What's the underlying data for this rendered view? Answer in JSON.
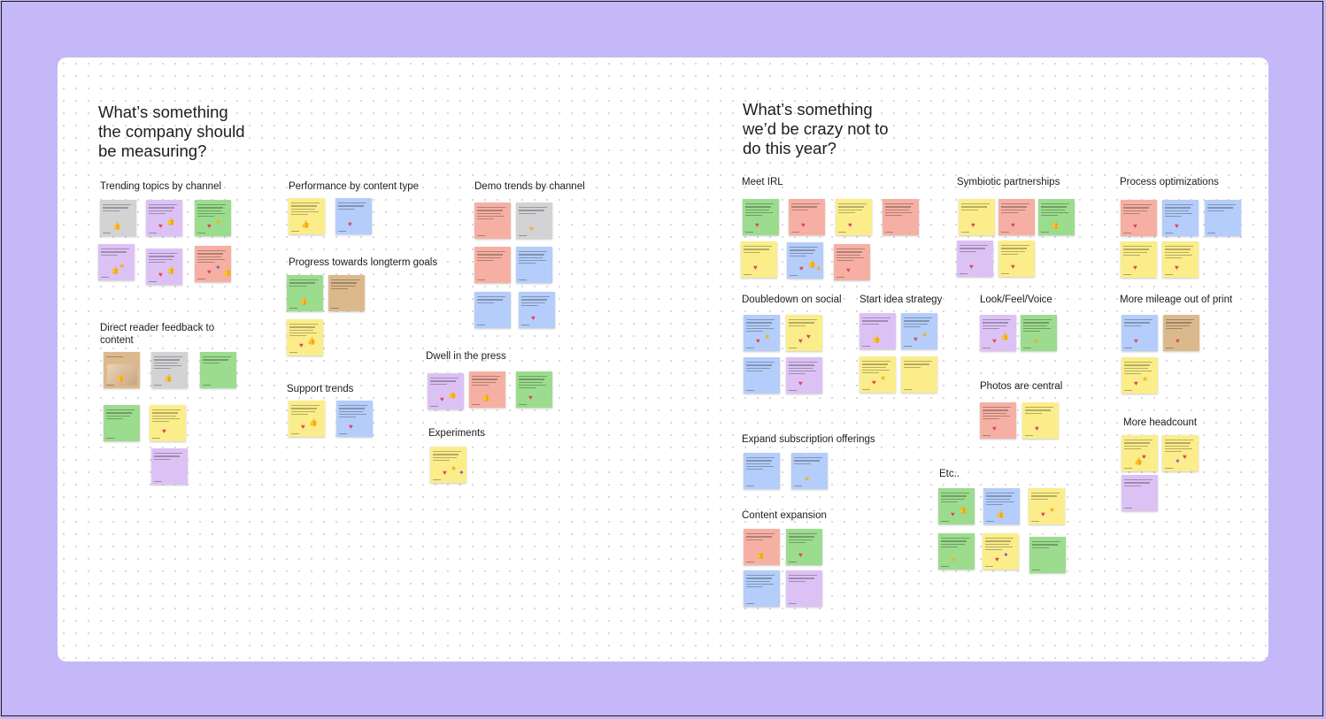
{
  "board": {
    "colors": {
      "canvas": "#c4b8f8",
      "board": "#ffffff",
      "yellow": "#fbed8a",
      "blue": "#b4cdfa",
      "green": "#9cdc8e",
      "pink": "#f6b0a3",
      "purple": "#dcc2f4",
      "gray": "#d3d3d6",
      "tan": "#dcb98c"
    },
    "questions": [
      {
        "title": "What’s something\nthe company should\nbe measuring?"
      },
      {
        "title": "What’s something\nwe’d be crazy not to\ndo this year?"
      }
    ],
    "sections": [
      {
        "label": "Trending topics by channel",
        "stickies": [
          {
            "color": "gray",
            "text": "Trending Topics by Platform",
            "reactions": [
              "thumb"
            ]
          },
          {
            "color": "purple",
            "text": "Of the young age following on our Instagram, what are they most interested in?",
            "reactions": [
              "heart",
              "thumb"
            ]
          },
          {
            "color": "green",
            "text": "Trends in generalized interests on IG / Web",
            "reactions": [
              "heart",
              "star"
            ]
          },
          {
            "color": "purple",
            "text": "What do people search for on Google",
            "reactions": [
              "thumb",
              "star"
            ]
          },
          {
            "color": "purple",
            "text": "What people click on via social channels",
            "reactions": [
              "heart",
              "thumb"
            ]
          },
          {
            "color": "pink",
            "text": "Most trending organic search keywords",
            "reactions": [
              "heart",
              "party",
              "thumb"
            ]
          }
        ]
      },
      {
        "label": "Direct reader feedback to content",
        "stickies": [
          {
            "color": "tan",
            "text": "Audience feedback",
            "reactions": [
              "thumb"
            ],
            "photo": true
          },
          {
            "color": "gray",
            "text": "Reader comments by content",
            "reactions": [
              "thumb"
            ]
          },
          {
            "color": "green",
            "text": "Audience feedback on content",
            "reactions": []
          },
          {
            "color": "green",
            "text": "Social media engagement",
            "reactions": []
          },
          {
            "color": "yellow",
            "text": "Key reader responses",
            "reactions": [
              "heart"
            ]
          },
          {
            "color": "purple",
            "text": "Feedback from readers on topics",
            "reactions": []
          }
        ]
      },
      {
        "label": "Performance by content type",
        "stickies": [
          {
            "color": "yellow",
            "text": "Engagement by content type",
            "reactions": [
              "thumb"
            ]
          },
          {
            "color": "blue",
            "text": "Performance of each content format",
            "reactions": [
              "heart"
            ]
          }
        ]
      },
      {
        "label": "Progress towards longterm goals",
        "stickies": [
          {
            "color": "green",
            "text": "Tracking revenue goals",
            "reactions": [
              "thumb"
            ]
          },
          {
            "color": "tan",
            "text": "Benchmark metrics",
            "reactions": []
          },
          {
            "color": "yellow",
            "text": "Progress on annual company milestones",
            "reactions": [
              "heart",
              "thumb"
            ]
          }
        ]
      },
      {
        "label": "Support trends",
        "stickies": [
          {
            "color": "yellow",
            "text": "Customer service trends",
            "reactions": [
              "heart",
              "thumb"
            ]
          },
          {
            "color": "blue",
            "text": "Customer support ticket topics",
            "reactions": [
              "heart"
            ]
          }
        ]
      },
      {
        "label": "Demo trends by channel",
        "stickies": [
          {
            "color": "pink",
            "text": "Which demo profile drives content",
            "reactions": []
          },
          {
            "color": "gray",
            "text": "Trend by platform",
            "reactions": [
              "star"
            ]
          },
          {
            "color": "pink",
            "text": "Age groups and gender",
            "reactions": []
          },
          {
            "color": "blue",
            "text": "Growth of our audience by channel",
            "reactions": []
          },
          {
            "color": "blue",
            "text": "Audience growth by channel",
            "reactions": []
          },
          {
            "color": "blue",
            "text": "Gen audience trends",
            "reactions": [
              "heart"
            ]
          }
        ]
      },
      {
        "label": "Dwell in the press",
        "stickies": [
          {
            "color": "purple",
            "text": "Are readers staying longer",
            "reactions": [
              "heart",
              "thumb"
            ]
          },
          {
            "color": "pink",
            "text": "Sections of time in article",
            "reactions": [
              "thumb"
            ]
          },
          {
            "color": "green",
            "text": "Reference to dwell time",
            "reactions": [
              "heart"
            ]
          }
        ]
      },
      {
        "label": "Experiments",
        "stickies": [
          {
            "color": "yellow",
            "text": "Experiment ideas",
            "reactions": [
              "heart",
              "star",
              "party"
            ]
          }
        ]
      },
      {
        "label": "Meet IRL",
        "stickies": [
          {
            "color": "green",
            "text": "Get together IRL",
            "reactions": [
              "heart"
            ]
          },
          {
            "color": "pink",
            "text": "Team retreats",
            "reactions": [
              "heart"
            ]
          },
          {
            "color": "yellow",
            "text": "Meet-ups",
            "reactions": [
              "heart"
            ]
          },
          {
            "color": "pink",
            "text": "In-person company retreat",
            "reactions": []
          },
          {
            "color": "yellow",
            "text": "Company-wide offsite",
            "reactions": [
              "heart"
            ]
          },
          {
            "color": "blue",
            "text": "Team building",
            "reactions": [
              "heart",
              "thumb",
              "star"
            ]
          },
          {
            "color": "pink",
            "text": "Quarterly in-person planning",
            "reactions": [
              "heart"
            ]
          }
        ]
      },
      {
        "label": "Symbiotic partnerships",
        "stickies": [
          {
            "color": "yellow",
            "text": "Explore partnerships",
            "reactions": [
              "heart"
            ]
          },
          {
            "color": "pink",
            "text": "Syndication partners",
            "reactions": [
              "heart"
            ]
          },
          {
            "color": "green",
            "text": "Joint programs",
            "reactions": [
              "thumb"
            ]
          },
          {
            "color": "purple",
            "text": "Partner events",
            "reactions": [
              "heart"
            ]
          },
          {
            "color": "yellow",
            "text": "Find new partners",
            "reactions": [
              "heart"
            ]
          }
        ]
      },
      {
        "label": "Process optimizations",
        "stickies": [
          {
            "color": "pink",
            "text": "Bring workflows up to date",
            "reactions": [
              "heart"
            ]
          },
          {
            "color": "blue",
            "text": "Make processes faster",
            "reactions": [
              "heart"
            ]
          },
          {
            "color": "blue",
            "text": "Streamline tools",
            "reactions": []
          },
          {
            "color": "yellow",
            "text": "Invest in a planning platform",
            "reactions": [
              "heart"
            ]
          },
          {
            "color": "yellow",
            "text": "Automate where possible",
            "reactions": [
              "heart"
            ]
          }
        ]
      },
      {
        "label": "Doubledown on social",
        "stickies": [
          {
            "color": "blue",
            "text": "Go hard on social",
            "reactions": [
              "heart",
              "star"
            ]
          },
          {
            "color": "yellow",
            "text": "Get TikTok famous",
            "reactions": [
              "heart",
              "heart"
            ]
          },
          {
            "color": "blue",
            "text": "Double down on Instagram",
            "reactions": []
          },
          {
            "color": "purple",
            "text": "Try video platforms",
            "reactions": [
              "heart"
            ]
          }
        ]
      },
      {
        "label": "Start idea strategy",
        "stickies": [
          {
            "color": "purple",
            "text": "Where it could go",
            "reactions": [
              "thumb"
            ]
          },
          {
            "color": "blue",
            "text": "Short form video content",
            "reactions": [
              "heart",
              "star"
            ]
          },
          {
            "color": "yellow",
            "text": "Share ideas that work",
            "reactions": [
              "heart",
              "star"
            ]
          },
          {
            "color": "yellow",
            "text": "Amplification strategy",
            "reactions": []
          }
        ]
      },
      {
        "label": "Look/Feel/Voice",
        "stickies": [
          {
            "color": "purple",
            "text": "Refresh the overall look",
            "reactions": [
              "heart",
              "thumb"
            ]
          },
          {
            "color": "green",
            "text": "Update brand colors",
            "reactions": [
              "star"
            ]
          }
        ]
      },
      {
        "label": "Photos are central",
        "stickies": [
          {
            "color": "pink",
            "text": "Make photos central",
            "reactions": [
              "heart"
            ]
          },
          {
            "color": "yellow",
            "text": "Plan for a fresh image style",
            "reactions": [
              "heart"
            ]
          }
        ]
      },
      {
        "label": "More mileage out of print",
        "stickies": [
          {
            "color": "blue",
            "text": "Strategize print",
            "reactions": [
              "heart"
            ]
          },
          {
            "color": "tan",
            "text": "Print digest",
            "reactions": [
              "heart"
            ]
          },
          {
            "color": "yellow",
            "text": "Reuse print content",
            "reactions": [
              "heart",
              "star"
            ]
          }
        ]
      },
      {
        "label": "More headcount",
        "stickies": [
          {
            "color": "yellow",
            "text": "Hire more people",
            "reactions": [
              "thumb",
              "heart"
            ]
          },
          {
            "color": "yellow",
            "text": "Grow the team",
            "reactions": [
              "party",
              "heart"
            ]
          },
          {
            "color": "purple",
            "text": "More new roles",
            "reactions": []
          }
        ]
      },
      {
        "label": "Expand subscription offerings",
        "stickies": [
          {
            "color": "blue",
            "text": "Add new subscription tiers",
            "reactions": []
          },
          {
            "color": "blue",
            "text": "Gift subscriptions",
            "reactions": [
              "star"
            ]
          }
        ]
      },
      {
        "label": "Content expansion",
        "stickies": [
          {
            "color": "pink",
            "text": "Increase volume of guides",
            "reactions": [
              "thumb"
            ]
          },
          {
            "color": "green",
            "text": "Create new interactive content",
            "reactions": [
              "heart"
            ]
          },
          {
            "color": "blue",
            "text": "More in-depth stories",
            "reactions": []
          },
          {
            "color": "purple",
            "text": "Newsletter",
            "reactions": []
          }
        ]
      },
      {
        "label": "Etc..",
        "stickies": [
          {
            "color": "green",
            "text": "Go global",
            "reactions": [
              "heart",
              "thumb"
            ]
          },
          {
            "color": "blue",
            "text": "Expand our reach",
            "reactions": [
              "thumb"
            ]
          },
          {
            "color": "yellow",
            "text": "Grow our visibility",
            "reactions": [
              "heart",
              "star"
            ]
          },
          {
            "color": "green",
            "text": "Rethink events",
            "reactions": [
              "star"
            ]
          },
          {
            "color": "yellow",
            "text": "Rebrand from the ground up",
            "reactions": [
              "heart",
              "party"
            ]
          },
          {
            "color": "green",
            "text": "Foster growth",
            "reactions": []
          }
        ]
      }
    ]
  }
}
